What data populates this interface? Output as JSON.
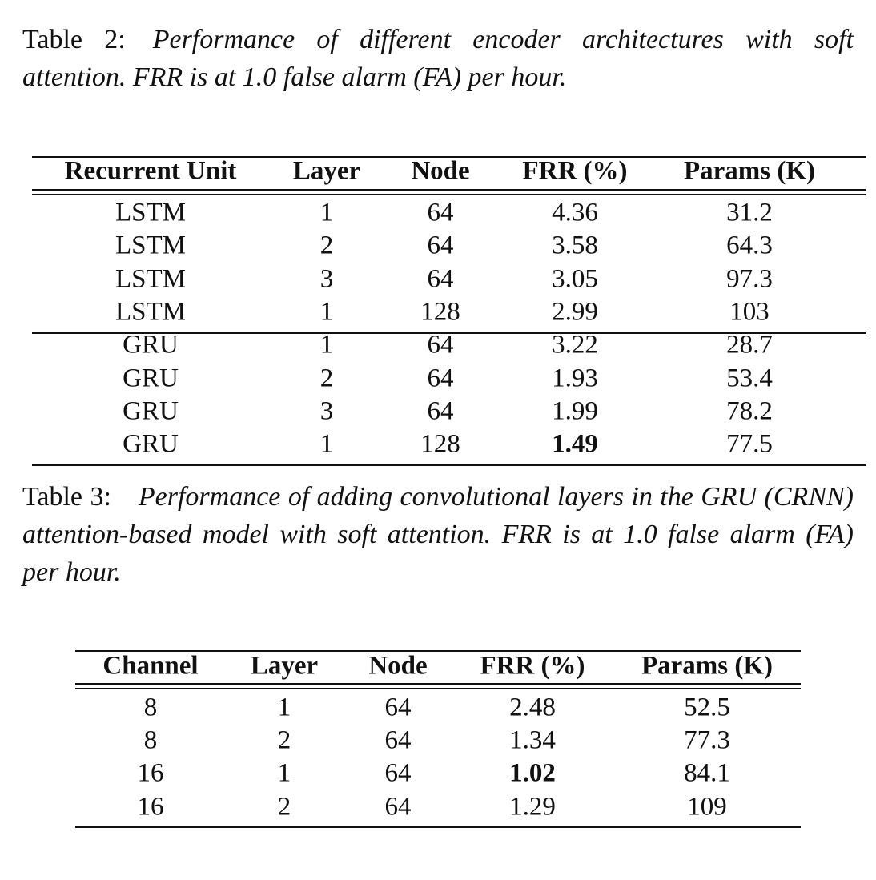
{
  "tables": [
    {
      "caption": {
        "label": "Table 2:",
        "text": "Performance of different encoder architectures with soft attention. FRR is at 1.0 false alarm (FA) per hour."
      },
      "header": [
        "Recurrent Unit",
        "Layer",
        "Node",
        "FRR (%)",
        "Params (K)"
      ],
      "groups": [
        [
          [
            "LSTM",
            "1",
            "64",
            "4.36",
            "31.2"
          ],
          [
            "LSTM",
            "2",
            "64",
            "3.58",
            "64.3"
          ],
          [
            "LSTM",
            "3",
            "64",
            "3.05",
            "97.3"
          ],
          [
            "LSTM",
            "1",
            "128",
            "2.99",
            "103"
          ]
        ],
        [
          [
            "GRU",
            "1",
            "64",
            "3.22",
            "28.7"
          ],
          [
            "GRU",
            "2",
            "64",
            "1.93",
            "53.4"
          ],
          [
            "GRU",
            "3",
            "64",
            "1.99",
            "78.2"
          ],
          [
            "GRU",
            "1",
            "128",
            {
              "text": "1.49",
              "bold": true
            },
            "77.5"
          ]
        ]
      ]
    },
    {
      "caption": {
        "label": "Table 3:",
        "text": "Performance of adding convolutional layers in the GRU (CRNN) attention-based model with soft attention. FRR is at 1.0 false alarm (FA) per hour."
      },
      "header": [
        "Channel",
        "Layer",
        "Node",
        "FRR (%)",
        "Params (K)"
      ],
      "groups": [
        [
          [
            "8",
            "1",
            "64",
            "2.48",
            "52.5"
          ],
          [
            "8",
            "2",
            "64",
            "1.34",
            "77.3"
          ],
          [
            "16",
            "1",
            "64",
            {
              "text": "1.02",
              "bold": true
            },
            "84.1"
          ],
          [
            "16",
            "2",
            "64",
            "1.29",
            "109"
          ]
        ]
      ]
    }
  ]
}
